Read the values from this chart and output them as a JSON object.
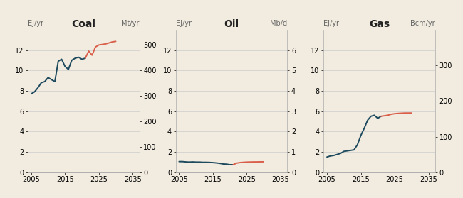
{
  "background_color": "#f2ece0",
  "panel_bg": "#f2ece0",
  "dark_line_color": "#1e4a5e",
  "red_line_color": "#d95f4b",
  "title_fontsize": 10,
  "label_fontsize": 7,
  "tick_fontsize": 7,
  "coal": {
    "title": "Coal",
    "ylabel_left": "EJ/yr",
    "ylabel_right": "Mt/yr",
    "ylim_left": [
      0,
      14
    ],
    "ylim_right": [
      0,
      560
    ],
    "yticks_left": [
      0,
      2,
      4,
      6,
      8,
      10,
      12
    ],
    "yticks_right": [
      0,
      100,
      200,
      300,
      400,
      500
    ],
    "xlim": [
      2004,
      2037
    ],
    "xticks": [
      2005,
      2015,
      2025,
      2035
    ],
    "hist_years": [
      2005,
      2006,
      2007,
      2008,
      2009,
      2010,
      2011,
      2012,
      2013,
      2014,
      2015,
      2016,
      2017,
      2018,
      2019,
      2020,
      2021
    ],
    "hist_values": [
      7.7,
      7.9,
      8.3,
      8.8,
      8.9,
      9.3,
      9.1,
      8.9,
      10.9,
      11.1,
      10.4,
      10.1,
      11.0,
      11.2,
      11.3,
      11.1,
      11.2
    ],
    "proj_years": [
      2021,
      2022,
      2023,
      2024,
      2025,
      2026,
      2027,
      2028,
      2029,
      2030
    ],
    "proj_values": [
      11.2,
      11.9,
      11.5,
      12.3,
      12.5,
      12.55,
      12.6,
      12.7,
      12.8,
      12.85
    ]
  },
  "oil": {
    "title": "Oil",
    "ylabel_left": "EJ/yr",
    "ylabel_right": "Mb/d",
    "ylim_left": [
      0,
      14
    ],
    "ylim_right": [
      0,
      7
    ],
    "yticks_left": [
      0,
      2,
      4,
      6,
      8,
      10,
      12
    ],
    "yticks_right": [
      0,
      1,
      2,
      3,
      4,
      5,
      6
    ],
    "xlim": [
      2004,
      2037
    ],
    "xticks": [
      2005,
      2015,
      2025,
      2035
    ],
    "hist_years": [
      2005,
      2006,
      2007,
      2008,
      2009,
      2010,
      2011,
      2012,
      2013,
      2014,
      2015,
      2016,
      2017,
      2018,
      2019,
      2020,
      2021
    ],
    "hist_values": [
      1.05,
      1.05,
      1.02,
      1.0,
      1.02,
      1.0,
      1.0,
      0.98,
      0.98,
      0.97,
      0.95,
      0.92,
      0.88,
      0.82,
      0.8,
      0.75,
      0.75
    ],
    "proj_years": [
      2021,
      2022,
      2023,
      2024,
      2025,
      2026,
      2027,
      2028,
      2029,
      2030
    ],
    "proj_values": [
      0.75,
      0.9,
      0.95,
      0.98,
      1.0,
      1.01,
      1.02,
      1.02,
      1.03,
      1.03
    ]
  },
  "gas": {
    "title": "Gas",
    "ylabel_left": "EJ/yr",
    "ylabel_right": "Bcm/yr",
    "ylim_left": [
      0,
      14
    ],
    "ylim_right": [
      0,
      400
    ],
    "yticks_left": [
      0,
      2,
      4,
      6,
      8,
      10,
      12
    ],
    "yticks_right": [
      0,
      100,
      200,
      300
    ],
    "xlim": [
      2004,
      2037
    ],
    "xticks": [
      2005,
      2015,
      2025,
      2035
    ],
    "hist_years": [
      2005,
      2006,
      2007,
      2008,
      2009,
      2010,
      2011,
      2012,
      2013,
      2014,
      2015,
      2016,
      2017,
      2018,
      2019,
      2020,
      2021
    ],
    "hist_values": [
      1.5,
      1.6,
      1.65,
      1.75,
      1.85,
      2.05,
      2.1,
      2.15,
      2.2,
      2.7,
      3.6,
      4.3,
      5.1,
      5.5,
      5.6,
      5.3,
      5.5
    ],
    "proj_years": [
      2021,
      2022,
      2023,
      2024,
      2025,
      2026,
      2027,
      2028,
      2029,
      2030
    ],
    "proj_values": [
      5.5,
      5.55,
      5.6,
      5.7,
      5.75,
      5.78,
      5.8,
      5.82,
      5.82,
      5.82
    ]
  }
}
